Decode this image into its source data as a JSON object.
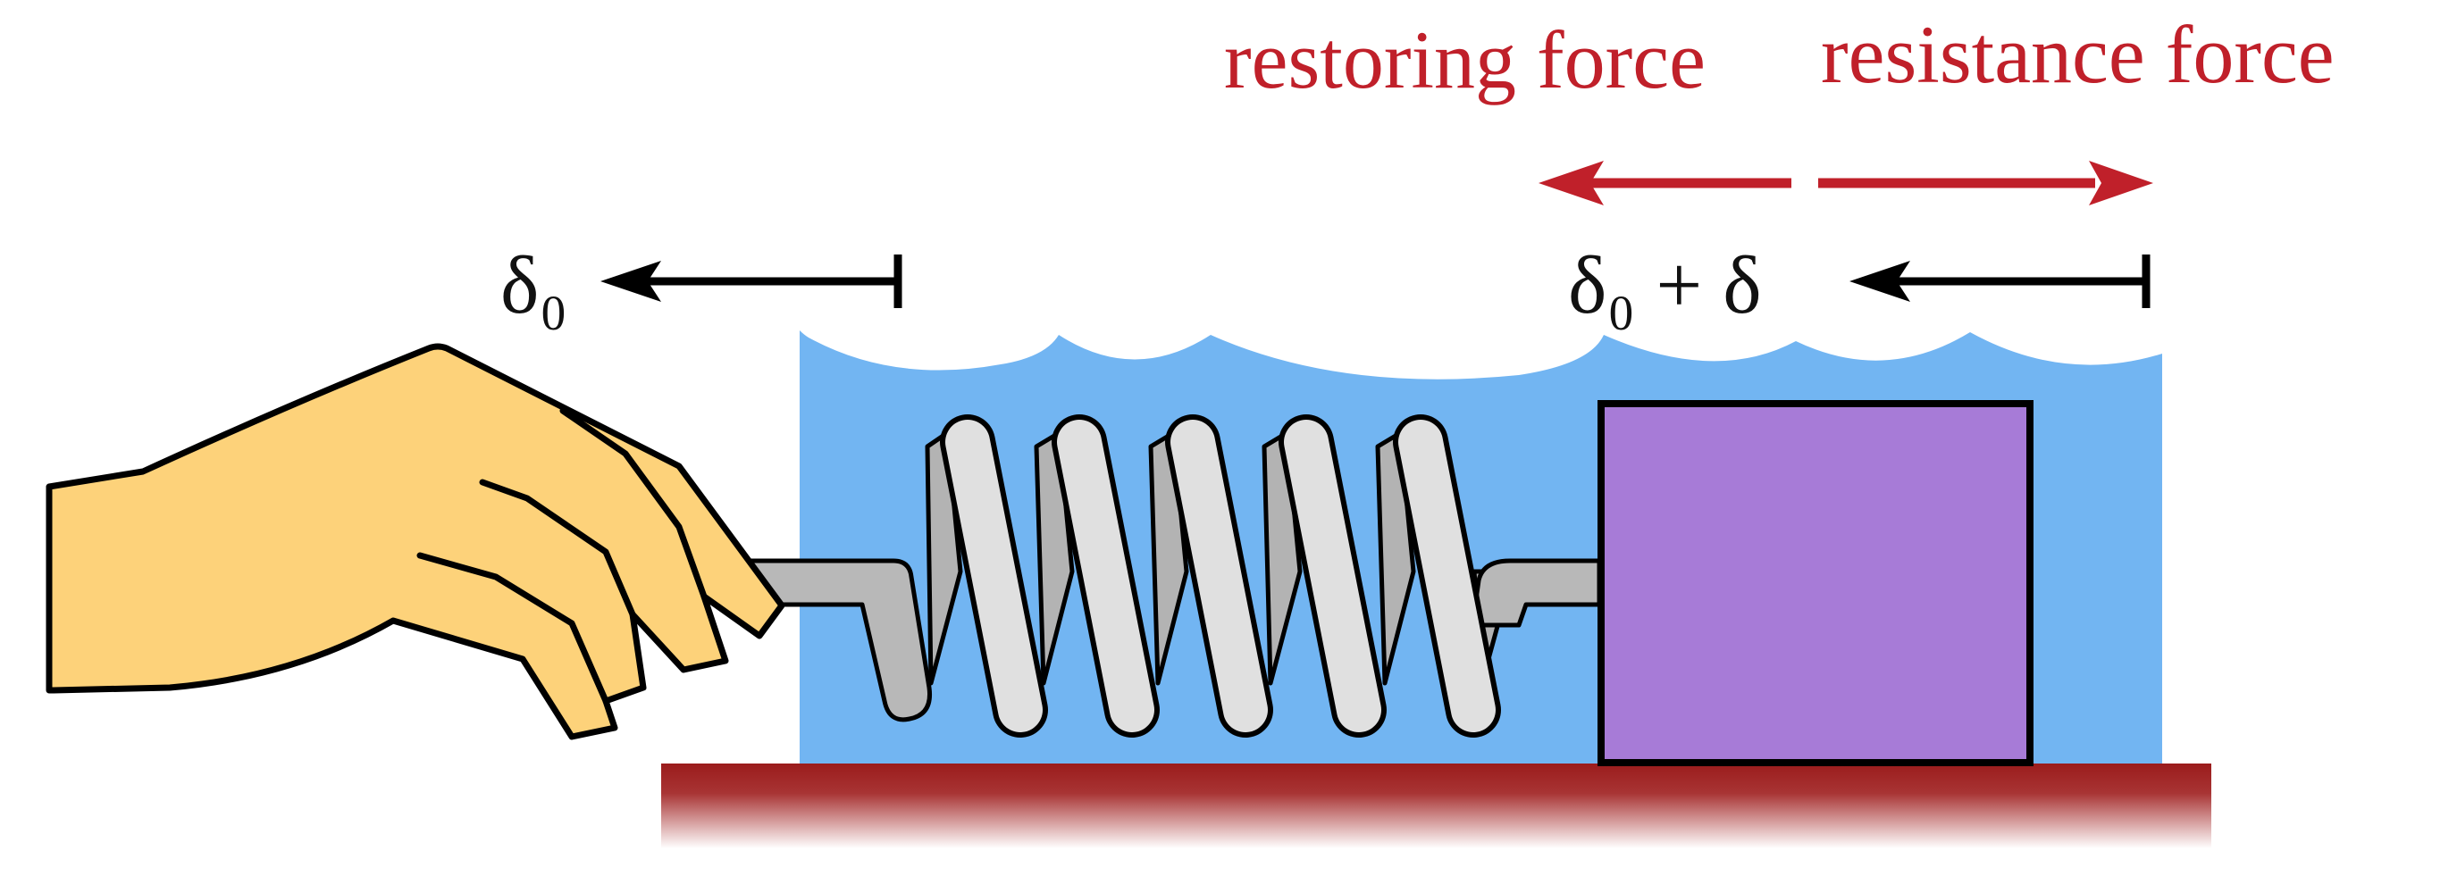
{
  "labels": {
    "restoring_force": "restoring force",
    "resistance_force": "resistance force",
    "delta0": "δ₀",
    "delta0_plus_delta": "δ₀ + δ"
  },
  "colors": {
    "force_arrow": "#c0202a",
    "fluid": "#72b5f2",
    "block": "#a77bd7",
    "hand": "#fdd27a",
    "spring": "#e0e0e0",
    "spring_shadow": "#b3b3b3",
    "floor": "#9b1c1c"
  }
}
